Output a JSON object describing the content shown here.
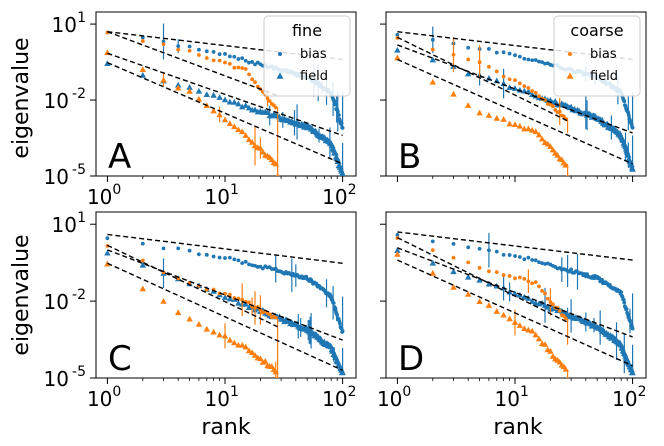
{
  "colors": {
    "bias": "#1f77b4",
    "field": "#ff7f0e",
    "fit": "#000000"
  },
  "chart_data": [
    {
      "type": "scatter",
      "panel_label": "A",
      "xlabel": "",
      "ylabel": "eigenvalue",
      "xscale": "log",
      "yscale": "log",
      "xlim": [
        0.8,
        130
      ],
      "ylim": [
        1e-05,
        30
      ],
      "x_ticks": [
        "10^0",
        "10^1",
        "10^2"
      ],
      "y_ticks": [
        "10^1",
        "10^-2",
        "10^-5"
      ],
      "legend": {
        "title": "fine",
        "entries": [
          "bias",
          "field"
        ],
        "position": "top-right"
      },
      "series": [
        {
          "name": "fine bias",
          "color": "#1f77b4",
          "marker": "circle",
          "n": 100,
          "points": [
            [
              1,
              5.0
            ],
            [
              10,
              0.6
            ],
            [
              50,
              0.08
            ],
            [
              80,
              0.02
            ],
            [
              100,
              0.0008
            ]
          ]
        },
        {
          "name": "fine field",
          "color": "#1f77b4",
          "marker": "triangle",
          "n": 100,
          "points": [
            [
              1,
              0.3
            ],
            [
              10,
              0.01
            ],
            [
              50,
              0.0009
            ],
            [
              80,
              0.0002
            ],
            [
              100,
              1.2e-05
            ]
          ]
        },
        {
          "name": "coarse bias",
          "color": "#ff7f0e",
          "marker": "circle",
          "n": 27,
          "points": [
            [
              1,
              5.0
            ],
            [
              5,
              0.8
            ],
            [
              15,
              0.15
            ],
            [
              27,
              0.005
            ],
            [
              28,
              1e-05
            ]
          ]
        },
        {
          "name": "coarse field",
          "color": "#ff7f0e",
          "marker": "triangle",
          "n": 28,
          "points": [
            [
              1,
              0.8
            ],
            [
              5,
              0.02
            ],
            [
              15,
              0.0004
            ],
            [
              27,
              3e-05
            ],
            [
              28,
              1e-05
            ]
          ]
        }
      ],
      "fit_lines": [
        [
          [
            1,
            5
          ],
          [
            100,
            0.4
          ]
        ],
        [
          [
            1,
            0.7
          ],
          [
            100,
            0.0004
          ]
        ],
        [
          [
            1,
            0.3
          ],
          [
            100,
            3e-05
          ]
        ],
        [
          [
            1,
            5
          ],
          [
            28,
            0.015
          ]
        ]
      ]
    },
    {
      "type": "scatter",
      "panel_label": "B",
      "xlabel": "",
      "ylabel": "",
      "xscale": "log",
      "yscale": "log",
      "xlim": [
        0.8,
        130
      ],
      "ylim": [
        1e-05,
        30
      ],
      "legend": {
        "title": "coarse",
        "entries": [
          "bias",
          "field"
        ],
        "position": "top-right"
      },
      "series": [
        {
          "name": "fine bias",
          "color": "#1f77b4",
          "marker": "circle",
          "n": 100,
          "points": [
            [
              1,
              4.0
            ],
            [
              10,
              0.6
            ],
            [
              50,
              0.08
            ],
            [
              80,
              0.02
            ],
            [
              100,
              0.0008
            ]
          ]
        },
        {
          "name": "fine field",
          "color": "#1f77b4",
          "marker": "triangle",
          "n": 100,
          "points": [
            [
              1,
              1.0
            ],
            [
              10,
              0.03
            ],
            [
              50,
              0.002
            ],
            [
              80,
              0.0004
            ],
            [
              100,
              2e-05
            ]
          ]
        },
        {
          "name": "coarse bias",
          "color": "#ff7f0e",
          "marker": "circle",
          "n": 27,
          "points": [
            [
              1,
              3.0
            ],
            [
              5,
              0.3
            ],
            [
              15,
              0.02
            ],
            [
              27,
              0.002
            ],
            [
              28,
              0.0005
            ]
          ]
        },
        {
          "name": "coarse field",
          "color": "#ff7f0e",
          "marker": "triangle",
          "n": 28,
          "points": [
            [
              1,
              0.5
            ],
            [
              5,
              0.003
            ],
            [
              15,
              0.0006
            ],
            [
              27,
              3e-05
            ],
            [
              28,
              1e-05
            ]
          ]
        }
      ],
      "fit_lines": [
        [
          [
            1,
            5
          ],
          [
            100,
            0.4
          ]
        ],
        [
          [
            1,
            1.5
          ],
          [
            100,
            0.0005
          ]
        ],
        [
          [
            1,
            0.4
          ],
          [
            100,
            3e-05
          ]
        ],
        [
          [
            1,
            3
          ],
          [
            28,
            0.0015
          ]
        ]
      ]
    },
    {
      "type": "scatter",
      "panel_label": "C",
      "xlabel": "rank",
      "ylabel": "eigenvalue",
      "xscale": "log",
      "yscale": "log",
      "xlim": [
        0.8,
        130
      ],
      "ylim": [
        1e-05,
        30
      ],
      "x_ticks": [
        "10^0",
        "10^1",
        "10^2"
      ],
      "y_ticks": [
        "10^1",
        "10^-2",
        "10^-5"
      ],
      "series": [
        {
          "name": "fine bias",
          "color": "#1f77b4",
          "marker": "circle",
          "n": 100,
          "points": [
            [
              1,
              3.0
            ],
            [
              10,
              0.5
            ],
            [
              50,
              0.08
            ],
            [
              80,
              0.015
            ],
            [
              100,
              0.0006
            ]
          ]
        },
        {
          "name": "fine field",
          "color": "#1f77b4",
          "marker": "triangle",
          "n": 100,
          "points": [
            [
              1,
              0.8
            ],
            [
              10,
              0.015
            ],
            [
              50,
              0.0008
            ],
            [
              80,
              0.00015
            ],
            [
              100,
              1.5e-05
            ]
          ]
        },
        {
          "name": "coarse bias",
          "color": "#ff7f0e",
          "marker": "circle",
          "n": 27,
          "points": [
            [
              1,
              1.5
            ],
            [
              5,
              0.05
            ],
            [
              15,
              0.01
            ],
            [
              27,
              0.002
            ],
            [
              28,
              2e-05
            ]
          ]
        },
        {
          "name": "coarse field",
          "color": "#ff7f0e",
          "marker": "triangle",
          "n": 28,
          "points": [
            [
              1,
              0.3
            ],
            [
              5,
              0.002
            ],
            [
              15,
              0.00015
            ],
            [
              27,
              2e-05
            ],
            [
              28,
              1e-05
            ]
          ]
        }
      ],
      "fit_lines": [
        [
          [
            1,
            4
          ],
          [
            100,
            0.3
          ]
        ],
        [
          [
            1,
            1.0
          ],
          [
            100,
            0.0003
          ]
        ],
        [
          [
            1,
            0.3
          ],
          [
            100,
            2e-05
          ]
        ],
        [
          [
            1,
            1.5
          ],
          [
            28,
            0.001
          ]
        ]
      ]
    },
    {
      "type": "scatter",
      "panel_label": "D",
      "xlabel": "rank",
      "ylabel": "",
      "xscale": "log",
      "yscale": "log",
      "xlim": [
        0.8,
        130
      ],
      "ylim": [
        1e-05,
        30
      ],
      "x_ticks": [
        "10^0",
        "10^1",
        "10^2"
      ],
      "series": [
        {
          "name": "fine bias",
          "color": "#1f77b4",
          "marker": "circle",
          "n": 100,
          "points": [
            [
              1,
              4.0
            ],
            [
              10,
              0.6
            ],
            [
              50,
              0.08
            ],
            [
              80,
              0.02
            ],
            [
              100,
              0.0008
            ]
          ]
        },
        {
          "name": "fine field",
          "color": "#1f77b4",
          "marker": "triangle",
          "n": 100,
          "points": [
            [
              1,
              1.0
            ],
            [
              10,
              0.02
            ],
            [
              50,
              0.001
            ],
            [
              80,
              0.0002
            ],
            [
              100,
              1.5e-05
            ]
          ]
        },
        {
          "name": "coarse bias",
          "color": "#ff7f0e",
          "marker": "circle",
          "n": 27,
          "points": [
            [
              1,
              3.0
            ],
            [
              5,
              0.2
            ],
            [
              15,
              0.05
            ],
            [
              27,
              0.002
            ],
            [
              28,
              0.0002
            ]
          ]
        },
        {
          "name": "coarse field",
          "color": "#ff7f0e",
          "marker": "triangle",
          "n": 28,
          "points": [
            [
              1,
              0.7
            ],
            [
              5,
              0.01
            ],
            [
              15,
              0.0005
            ],
            [
              27,
              2e-05
            ],
            [
              28,
              1e-05
            ]
          ]
        }
      ],
      "fit_lines": [
        [
          [
            1,
            5
          ],
          [
            100,
            0.4
          ]
        ],
        [
          [
            1,
            1.2
          ],
          [
            100,
            0.0004
          ]
        ],
        [
          [
            1,
            0.4
          ],
          [
            100,
            3e-05
          ]
        ],
        [
          [
            1,
            3
          ],
          [
            28,
            0.0015
          ]
        ]
      ]
    }
  ]
}
